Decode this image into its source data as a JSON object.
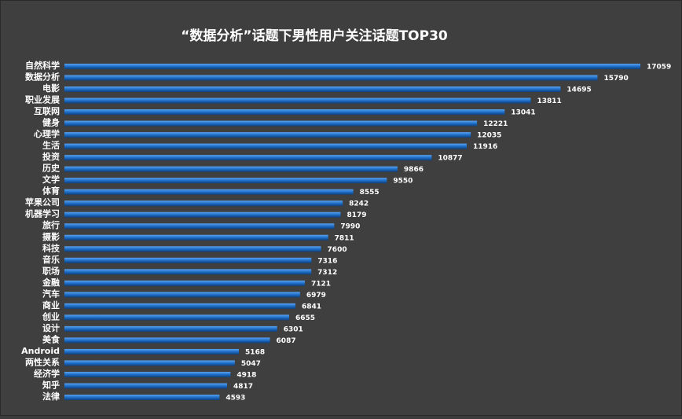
{
  "chart_data": {
    "type": "bar",
    "orientation": "horizontal",
    "title": "“数据分析”话题下男性用户关注话题TOP30",
    "categories": [
      "自然科学",
      "数据分析",
      "电影",
      "职业发展",
      "互联网",
      "健身",
      "心理学",
      "生活",
      "投资",
      "历史",
      "文学",
      "体育",
      "苹果公司",
      "机器学习",
      "旅行",
      "摄影",
      "科技",
      "音乐",
      "职场",
      "金融",
      "汽车",
      "商业",
      "创业",
      "设计",
      "美食",
      "Android",
      "两性关系",
      "经济学",
      "知乎",
      "法律"
    ],
    "values": [
      17059,
      15790,
      14695,
      13811,
      13041,
      12221,
      12035,
      11916,
      10877,
      9866,
      9550,
      8555,
      8242,
      8179,
      7990,
      7811,
      7600,
      7316,
      7312,
      7121,
      6979,
      6841,
      6655,
      6301,
      6087,
      5168,
      5047,
      4918,
      4817,
      4593
    ],
    "color": "#1e6ec8"
  }
}
